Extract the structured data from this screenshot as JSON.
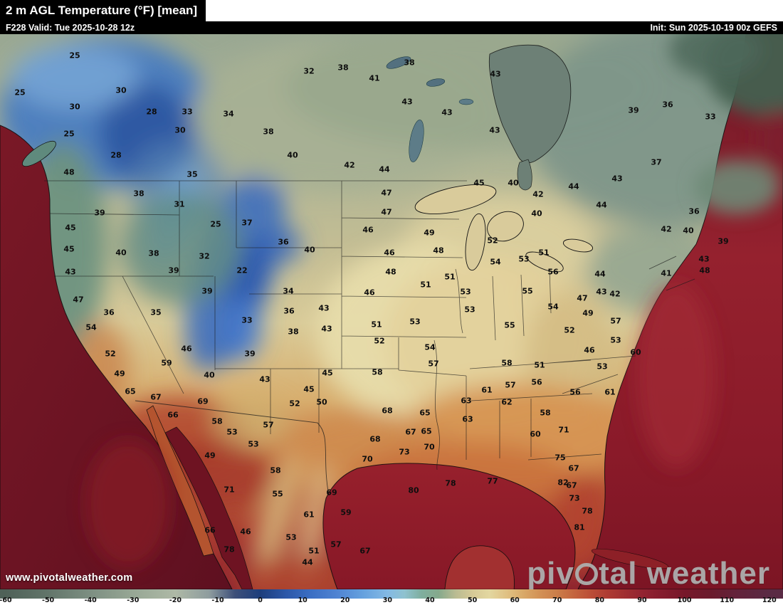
{
  "header": {
    "title": "2 m AGL Temperature (°F) [mean]",
    "valid": "F228 Valid: Tue 2025-10-28 12z",
    "init": "Init: Sun 2025-10-19 00z GEFS"
  },
  "branding": {
    "watermark_pre": "piv",
    "watermark_post": "tal weather",
    "website": "www.pivotalweather.com"
  },
  "colorbar": {
    "unit": "°F",
    "ticks": [
      -60,
      -50,
      -40,
      -30,
      -20,
      -10,
      0,
      10,
      20,
      30,
      40,
      50,
      60,
      70,
      80,
      90,
      100,
      110,
      120
    ],
    "stops": [
      {
        "v": -60,
        "c": "#4f6158"
      },
      {
        "v": -50,
        "c": "#62756a"
      },
      {
        "v": -40,
        "c": "#7d8f82"
      },
      {
        "v": -30,
        "c": "#97a795"
      },
      {
        "v": -20,
        "c": "#aeb9a6"
      },
      {
        "v": -12,
        "c": "#8e9c9e"
      },
      {
        "v": -6,
        "c": "#3d4f79"
      },
      {
        "v": 0,
        "c": "#1d3e7c"
      },
      {
        "v": 6,
        "c": "#2b57a8"
      },
      {
        "v": 12,
        "c": "#3b6fc4"
      },
      {
        "v": 18,
        "c": "#4f83d2"
      },
      {
        "v": 24,
        "c": "#64a0de"
      },
      {
        "v": 30,
        "c": "#83b9e4"
      },
      {
        "v": 34,
        "c": "#8fc2cf"
      },
      {
        "v": 38,
        "c": "#7fae9e"
      },
      {
        "v": 42,
        "c": "#85a98c"
      },
      {
        "v": 46,
        "c": "#b9bb92"
      },
      {
        "v": 50,
        "c": "#d6c996"
      },
      {
        "v": 54,
        "c": "#e3d7a0"
      },
      {
        "v": 58,
        "c": "#e0c184"
      },
      {
        "v": 62,
        "c": "#d9a968"
      },
      {
        "v": 66,
        "c": "#d29055"
      },
      {
        "v": 70,
        "c": "#cb7d49"
      },
      {
        "v": 74,
        "c": "#c4643e"
      },
      {
        "v": 78,
        "c": "#bb4d37"
      },
      {
        "v": 82,
        "c": "#ae3a32"
      },
      {
        "v": 86,
        "c": "#a02e31"
      },
      {
        "v": 90,
        "c": "#932331"
      },
      {
        "v": 94,
        "c": "#871d2e"
      },
      {
        "v": 100,
        "c": "#77172a"
      },
      {
        "v": 106,
        "c": "#6b1a2c"
      },
      {
        "v": 112,
        "c": "#63223a"
      },
      {
        "v": 120,
        "c": "#5a2a44"
      }
    ]
  },
  "map": {
    "labels_format": "[tempF, x, y]",
    "labels": [
      [
        25,
        105,
        30
      ],
      [
        32,
        434,
        52
      ],
      [
        38,
        482,
        47
      ],
      [
        41,
        526,
        62
      ],
      [
        38,
        575,
        40
      ],
      [
        43,
        696,
        56
      ],
      [
        25,
        28,
        82
      ],
      [
        30,
        170,
        79
      ],
      [
        43,
        572,
        95
      ],
      [
        43,
        628,
        110
      ],
      [
        36,
        938,
        99
      ],
      [
        39,
        890,
        107
      ],
      [
        33,
        998,
        116
      ],
      [
        30,
        105,
        102
      ],
      [
        28,
        213,
        109
      ],
      [
        33,
        263,
        109
      ],
      [
        34,
        321,
        112
      ],
      [
        30,
        253,
        135
      ],
      [
        25,
        97,
        140
      ],
      [
        38,
        377,
        137
      ],
      [
        43,
        695,
        135
      ],
      [
        28,
        163,
        170
      ],
      [
        40,
        411,
        170
      ],
      [
        37,
        922,
        180
      ],
      [
        35,
        270,
        197
      ],
      [
        42,
        491,
        184
      ],
      [
        44,
        540,
        190
      ],
      [
        45,
        673,
        209
      ],
      [
        40,
        721,
        209
      ],
      [
        43,
        867,
        203
      ],
      [
        44,
        806,
        214
      ],
      [
        48,
        97,
        194
      ],
      [
        42,
        756,
        225
      ],
      [
        44,
        845,
        240
      ],
      [
        40,
        754,
        252
      ],
      [
        36,
        975,
        249
      ],
      [
        38,
        195,
        224
      ],
      [
        39,
        140,
        251
      ],
      [
        47,
        543,
        223
      ],
      [
        47,
        543,
        250
      ],
      [
        31,
        252,
        239
      ],
      [
        25,
        303,
        267
      ],
      [
        37,
        347,
        265
      ],
      [
        46,
        517,
        275
      ],
      [
        49,
        603,
        279
      ],
      [
        52,
        692,
        290
      ],
      [
        42,
        936,
        274
      ],
      [
        40,
        967,
        276
      ],
      [
        39,
        1016,
        291
      ],
      [
        45,
        99,
        272
      ],
      [
        40,
        170,
        307
      ],
      [
        38,
        216,
        308
      ],
      [
        32,
        287,
        312
      ],
      [
        22,
        340,
        332
      ],
      [
        36,
        398,
        292
      ],
      [
        40,
        435,
        303
      ],
      [
        46,
        547,
        307
      ],
      [
        48,
        616,
        304
      ],
      [
        54,
        696,
        320
      ],
      [
        53,
        736,
        316
      ],
      [
        51,
        764,
        307
      ],
      [
        44,
        843,
        337
      ],
      [
        41,
        936,
        336
      ],
      [
        43,
        989,
        316
      ],
      [
        45,
        97,
        302
      ],
      [
        43,
        99,
        334
      ],
      [
        39,
        244,
        332
      ],
      [
        39,
        291,
        361
      ],
      [
        34,
        405,
        361
      ],
      [
        48,
        549,
        334
      ],
      [
        51,
        632,
        341
      ],
      [
        56,
        777,
        334
      ],
      [
        48,
        990,
        332
      ],
      [
        47,
        110,
        373
      ],
      [
        36,
        153,
        391
      ],
      [
        35,
        219,
        391
      ],
      [
        33,
        347,
        402
      ],
      [
        36,
        406,
        389
      ],
      [
        43,
        455,
        385
      ],
      [
        51,
        598,
        352
      ],
      [
        53,
        654,
        362
      ],
      [
        55,
        741,
        361
      ],
      [
        47,
        818,
        371
      ],
      [
        43,
        845,
        362
      ],
      [
        42,
        864,
        365
      ],
      [
        46,
        519,
        363
      ],
      [
        54,
        128,
        412
      ],
      [
        38,
        412,
        418
      ],
      [
        43,
        459,
        414
      ],
      [
        51,
        529,
        408
      ],
      [
        53,
        583,
        404
      ],
      [
        53,
        660,
        387
      ],
      [
        54,
        777,
        383
      ],
      [
        49,
        826,
        392
      ],
      [
        57,
        865,
        403
      ],
      [
        52,
        155,
        449
      ],
      [
        46,
        262,
        442
      ],
      [
        39,
        351,
        449
      ],
      [
        52,
        533,
        431
      ],
      [
        54,
        604,
        440
      ],
      [
        55,
        716,
        409
      ],
      [
        52,
        800,
        416
      ],
      [
        53,
        865,
        430
      ],
      [
        60,
        893,
        447
      ],
      [
        49,
        168,
        477
      ],
      [
        59,
        234,
        462
      ],
      [
        40,
        294,
        479
      ],
      [
        43,
        372,
        485
      ],
      [
        45,
        460,
        476
      ],
      [
        46,
        828,
        444
      ],
      [
        58,
        530,
        475
      ],
      [
        57,
        609,
        463
      ],
      [
        58,
        712,
        462
      ],
      [
        51,
        758,
        465
      ],
      [
        53,
        846,
        467
      ],
      [
        65,
        183,
        502
      ],
      [
        67,
        219,
        510
      ],
      [
        69,
        285,
        516
      ],
      [
        45,
        434,
        499
      ],
      [
        50,
        452,
        517
      ],
      [
        52,
        414,
        519
      ],
      [
        61,
        684,
        500
      ],
      [
        57,
        717,
        493
      ],
      [
        56,
        754,
        489
      ],
      [
        56,
        808,
        503
      ],
      [
        61,
        857,
        503
      ],
      [
        66,
        243,
        535
      ],
      [
        58,
        305,
        544
      ],
      [
        57,
        377,
        549
      ],
      [
        68,
        544,
        529
      ],
      [
        65,
        597,
        532
      ],
      [
        63,
        655,
        515
      ],
      [
        62,
        712,
        517
      ],
      [
        58,
        766,
        532
      ],
      [
        53,
        326,
        559
      ],
      [
        53,
        356,
        576
      ],
      [
        67,
        577,
        559
      ],
      [
        65,
        599,
        558
      ],
      [
        63,
        657,
        541
      ],
      [
        60,
        752,
        562
      ],
      [
        71,
        792,
        556
      ],
      [
        68,
        527,
        569
      ],
      [
        70,
        603,
        580
      ],
      [
        73,
        568,
        587
      ],
      [
        70,
        516,
        597
      ],
      [
        75,
        787,
        595
      ],
      [
        67,
        806,
        610
      ],
      [
        49,
        295,
        592
      ],
      [
        58,
        387,
        613
      ],
      [
        71,
        322,
        640
      ],
      [
        80,
        581,
        641
      ],
      [
        78,
        633,
        631
      ],
      [
        77,
        692,
        628
      ],
      [
        82,
        791,
        630
      ],
      [
        67,
        803,
        634
      ],
      [
        73,
        807,
        652
      ],
      [
        55,
        390,
        646
      ],
      [
        66,
        295,
        697
      ],
      [
        46,
        345,
        699
      ],
      [
        69,
        466,
        644
      ],
      [
        61,
        434,
        675
      ],
      [
        59,
        486,
        672
      ],
      [
        78,
        825,
        670
      ],
      [
        81,
        814,
        693
      ],
      [
        53,
        409,
        707
      ],
      [
        51,
        441,
        726
      ],
      [
        57,
        472,
        717
      ],
      [
        67,
        513,
        726
      ],
      [
        78,
        322,
        724
      ],
      [
        44,
        432,
        742
      ]
    ]
  }
}
